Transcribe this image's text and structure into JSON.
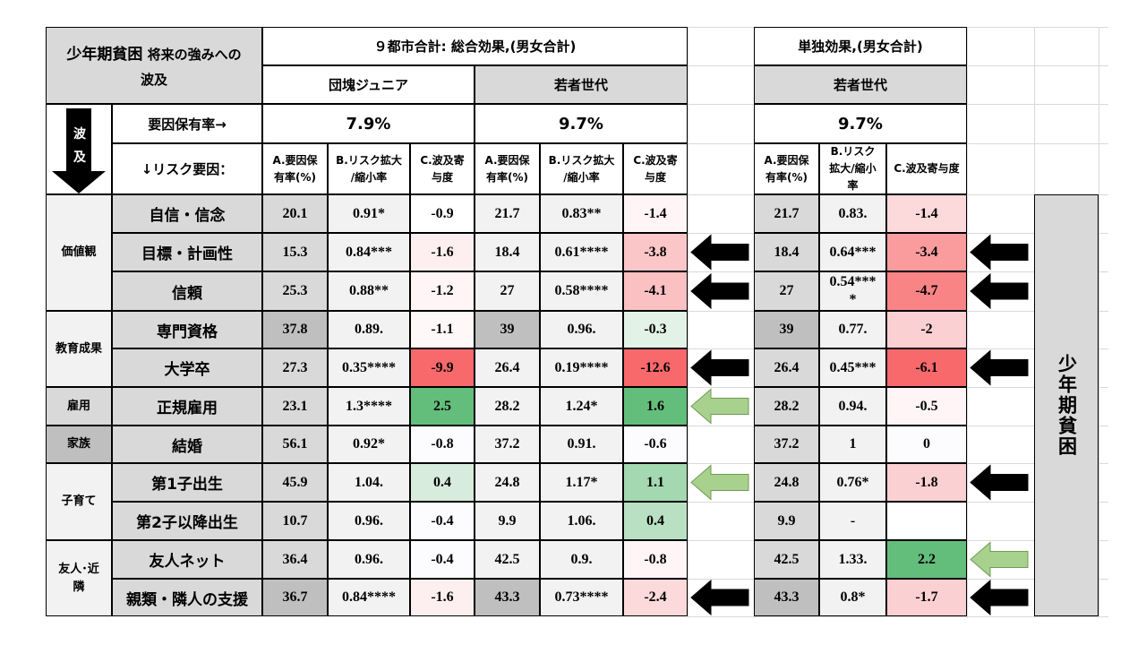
{
  "header": {
    "title_main": "少年期貧困",
    "title_rest": " 将来の強みへの",
    "title_line2": "波及",
    "total_effect": "９都市合計: 総合効果,(男女合計)",
    "single_effect": "単独効果,(男女合計)",
    "group_dankai": "団塊ジュニア",
    "group_young_1": "若者世代",
    "group_young_2": "若者世代"
  },
  "left_box": {
    "ha": "波",
    "kyu": "及",
    "rate_label": "要因保有率→",
    "risk_label": "↓リスク要因："
  },
  "rates": {
    "dankai": "7.9%",
    "young": "9.7%",
    "young_single": "9.7%"
  },
  "col_headers": {
    "a": [
      "A.要因保",
      "有率(%)"
    ],
    "b": [
      "B.リスク拡大",
      "/縮小率"
    ],
    "c": [
      "C.波及寄",
      "与度"
    ],
    "b_narrow": [
      "B.リスク",
      "拡大/縮小",
      "率"
    ],
    "c_single": "C.波及寄与度"
  },
  "categories": [
    {
      "label": "価値観"
    },
    {
      "label": "教育成果"
    },
    {
      "label": "雇用"
    },
    {
      "label": "家族"
    },
    {
      "label": "子育て"
    },
    {
      "label": "友人･近",
      "label2": "隣"
    }
  ],
  "side_label": "少年期貧困",
  "rows": [
    {
      "name": "自信・信念",
      "d": [
        "20.1",
        "0.91*",
        "-0.9"
      ],
      "y": [
        "21.7",
        "0.83**",
        "-1.4"
      ],
      "s": [
        "21.7",
        "0.83.",
        "-1.4"
      ]
    },
    {
      "name": "目標・計画性",
      "d": [
        "15.3",
        "0.84***",
        "-1.6"
      ],
      "y": [
        "18.4",
        "0.61****",
        "-3.8"
      ],
      "s": [
        "18.4",
        "0.64***",
        "-3.4"
      ]
    },
    {
      "name": "信頼",
      "d": [
        "25.3",
        "0.88**",
        "-1.2"
      ],
      "y": [
        "27",
        "0.58****",
        "-4.1"
      ],
      "s": [
        "27",
        "0.54***",
        "-4.7"
      ],
      "s_b2": "*"
    },
    {
      "name": "専門資格",
      "d": [
        "37.8",
        "0.89.",
        "-1.1"
      ],
      "y": [
        "39",
        "0.96.",
        "-0.3"
      ],
      "s": [
        "39",
        "0.77.",
        "-2"
      ]
    },
    {
      "name": "大学卒",
      "d": [
        "27.3",
        "0.35****",
        "-9.9"
      ],
      "y": [
        "26.4",
        "0.19****",
        "-12.6"
      ],
      "s": [
        "26.4",
        "0.45***",
        "-6.1"
      ]
    },
    {
      "name": "正規雇用",
      "d": [
        "23.1",
        "1.3****",
        "2.5"
      ],
      "y": [
        "28.2",
        "1.24*",
        "1.6"
      ],
      "s": [
        "28.2",
        "0.94.",
        "-0.5"
      ]
    },
    {
      "name": "結婚",
      "d": [
        "56.1",
        "0.92*",
        "-0.8"
      ],
      "y": [
        "37.2",
        "0.91.",
        "-0.6"
      ],
      "s": [
        "37.2",
        "1",
        "0"
      ]
    },
    {
      "name": "第1子出生",
      "d": [
        "45.9",
        "1.04.",
        "0.4"
      ],
      "y": [
        "24.8",
        "1.17*",
        "1.1"
      ],
      "s": [
        "24.8",
        "0.76*",
        "-1.8"
      ]
    },
    {
      "name": "第2子以降出生",
      "d": [
        "10.7",
        "0.96.",
        "-0.4"
      ],
      "y": [
        "9.9",
        "1.06.",
        "0.4"
      ],
      "s": [
        "9.9",
        "-",
        ""
      ]
    },
    {
      "name": "友人ネット",
      "d": [
        "36.4",
        "0.96.",
        "-0.4"
      ],
      "y": [
        "42.5",
        "0.9.",
        "-0.8"
      ],
      "s": [
        "42.5",
        "1.33.",
        "2.2"
      ]
    },
    {
      "name": "親類・隣人の支援",
      "d": [
        "36.7",
        "0.84****",
        "-1.6"
      ],
      "y": [
        "43.3",
        "0.73****",
        "-2.4"
      ],
      "s": [
        "43.3",
        "0.8*",
        "-1.7"
      ]
    }
  ],
  "colors": {
    "grey_cat": "#d9d9d9",
    "grey_dark": "#bfbfbf",
    "grey_light": "#f2f2f2",
    "black_arrow": "#000000",
    "green_arrow": "#a9d18e"
  }
}
